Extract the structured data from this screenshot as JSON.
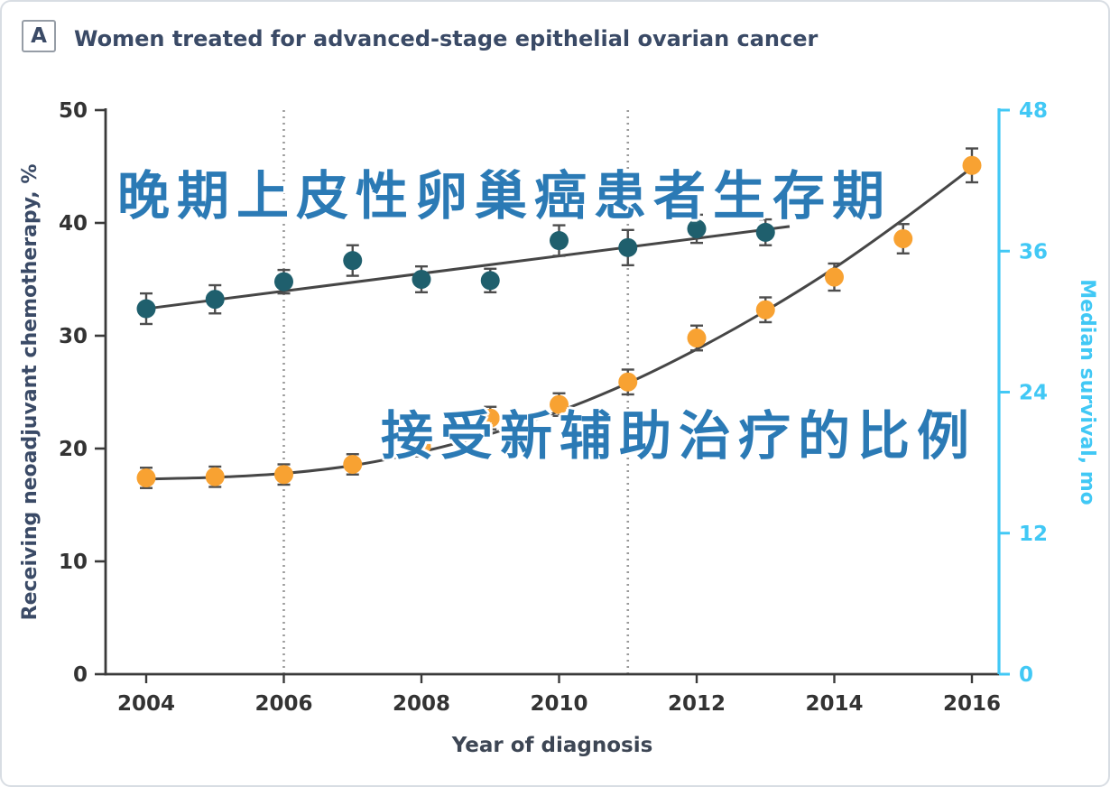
{
  "panel": {
    "label": "A",
    "title": "Women treated for advanced-stage epithelial ovarian cancer"
  },
  "watermarks": {
    "line1": "晚期上皮性卵巢癌患者生存期",
    "line2": "接受新辅助治疗的比例",
    "color": "#2b7ab5"
  },
  "colors": {
    "axis": "#3a3a3a",
    "tick_text": "#333333",
    "trend_line": "#464646",
    "error_bar": "#4d4d4d",
    "reference_line": "#9a9a9a",
    "panel_navy": "#3a4a66",
    "x_title": "#3d4654"
  },
  "chart_data": {
    "type": "line",
    "title": "Women treated for advanced-stage epithelial ovarian cancer",
    "x": [
      2004,
      2005,
      2006,
      2007,
      2008,
      2009,
      2010,
      2011,
      2012,
      2013,
      2014,
      2015,
      2016
    ],
    "x_axis": {
      "label": "Year of diagnosis",
      "ticks": [
        2004,
        2006,
        2008,
        2010,
        2012,
        2014,
        2016
      ],
      "min": 2004,
      "max": 2016
    },
    "left_axis": {
      "label": "Receiving neoadjuvant chemotherapy, %",
      "ticks": [
        0,
        10,
        20,
        30,
        40,
        50
      ],
      "min": 0,
      "max": 50,
      "color": "#3a4a66"
    },
    "right_axis": {
      "label": "Median survival, mo",
      "ticks": [
        0,
        12,
        24,
        36,
        48
      ],
      "min": 0,
      "max": 48,
      "color": "#41c8f5"
    },
    "vlines": [
      2006,
      2011
    ],
    "grid": false,
    "legend": "none",
    "series": [
      {
        "name": "median-survival",
        "display_name": "Median survival",
        "axis": "right",
        "color": "#1f5f6d",
        "x": [
          2004,
          2005,
          2006,
          2007,
          2008,
          2009,
          2010,
          2011,
          2012,
          2013
        ],
        "values": [
          31.1,
          31.9,
          33.4,
          35.2,
          33.6,
          33.5,
          36.9,
          36.3,
          37.9,
          37.6
        ],
        "errors": [
          1.3,
          1.2,
          1.0,
          1.3,
          1.1,
          1.0,
          1.3,
          1.5,
          1.2,
          1.1
        ],
        "trend": {
          "type": "linear",
          "x": [
            2004,
            2013.35
          ],
          "values": [
            31.1,
            38.1
          ]
        }
      },
      {
        "name": "neoadjuvant-chemotherapy",
        "display_name": "Receiving neoadjuvant chemotherapy",
        "axis": "left",
        "color": "#f8a232",
        "x": [
          2004,
          2005,
          2006,
          2007,
          2008,
          2009,
          2010,
          2011,
          2012,
          2013,
          2014,
          2015,
          2016
        ],
        "values": [
          17.4,
          17.5,
          17.7,
          18.6,
          20.2,
          22.7,
          23.9,
          25.9,
          29.8,
          32.3,
          35.2,
          38.6,
          45.1
        ],
        "errors": [
          0.9,
          0.9,
          0.9,
          0.9,
          0.9,
          1.0,
          1.0,
          1.1,
          1.1,
          1.1,
          1.2,
          1.3,
          1.5
        ],
        "trend": {
          "type": "smooth",
          "x": [
            2004,
            2005,
            2006,
            2007,
            2008,
            2009,
            2010,
            2011,
            2012,
            2013,
            2014,
            2015,
            2016
          ],
          "values": [
            17.3,
            17.45,
            17.8,
            18.5,
            19.7,
            21.3,
            23.3,
            25.8,
            28.8,
            32.2,
            36.0,
            40.3,
            44.9
          ]
        }
      }
    ]
  }
}
